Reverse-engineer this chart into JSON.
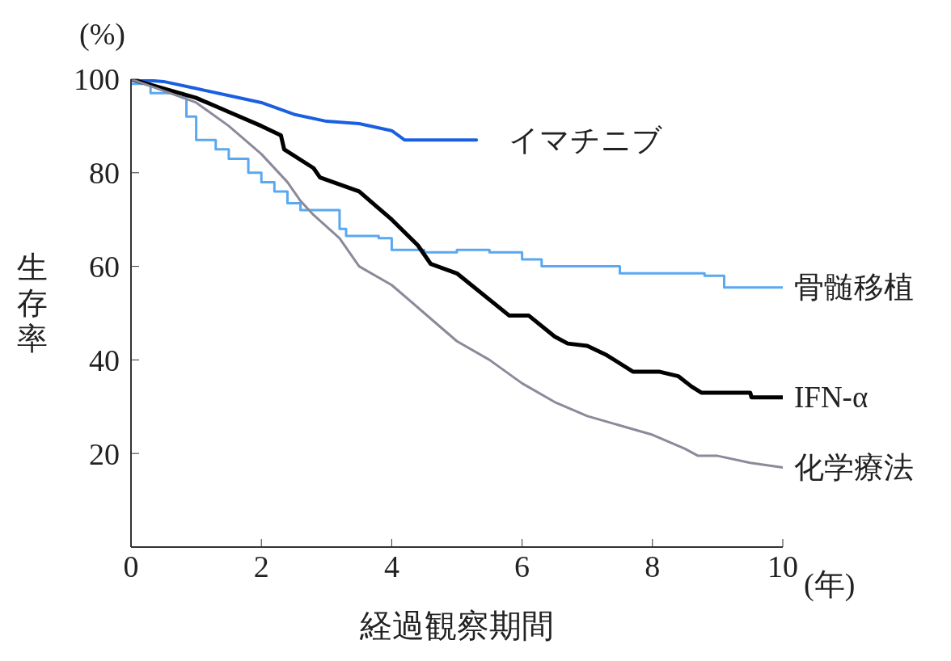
{
  "chart_data": {
    "type": "step",
    "ylabel": "生存率",
    "xlabel": "経過観察期間",
    "annotations": [
      "(%)",
      "(年)"
    ],
    "xlim": [
      0,
      10
    ],
    "xticks": [
      0,
      2,
      4,
      6,
      8,
      10
    ],
    "ylim": [
      0,
      100
    ],
    "yticks": [
      20,
      40,
      60,
      80,
      100
    ],
    "grid": false,
    "legend": false,
    "marker": "none",
    "line_style": "solid",
    "series": [
      {
        "name": "イマチニブ",
        "color": "#1a5fe0",
        "type": "line",
        "x": [
          0,
          0.5,
          1,
          1.5,
          2,
          2.5,
          3,
          3.5,
          4,
          4.2,
          5.3
        ],
        "values": [
          100,
          99.5,
          98,
          96.5,
          95,
          92.5,
          91,
          90.5,
          89,
          87,
          87
        ]
      },
      {
        "name": "骨髄移植",
        "color": "#5aa8f0",
        "x": [
          0,
          0.3,
          0.8,
          0.85,
          1,
          1.3,
          1.5,
          1.8,
          2,
          2.2,
          2.4,
          2.6,
          3.2,
          3.3,
          3.8,
          4,
          4.5,
          5,
          5.5,
          6,
          6.3,
          7.3,
          7.5,
          8.6,
          8.8,
          9,
          9.1,
          10
        ],
        "values": [
          99,
          97,
          96,
          92,
          87,
          85,
          83,
          80,
          78,
          76,
          73.5,
          72,
          68,
          66.5,
          66,
          63.5,
          63,
          63.5,
          63,
          61.5,
          60,
          60,
          58.5,
          58.5,
          58,
          58,
          55.5,
          55.5
        ]
      },
      {
        "name": "IFN-α",
        "color": "#000000",
        "type": "line",
        "x": [
          0,
          1,
          1.5,
          2,
          2.3,
          2.35,
          2.8,
          2.9,
          3.5,
          4,
          4.4,
          4.6,
          5,
          5.8,
          6.1,
          6.5,
          6.7,
          7,
          7.3,
          7.7,
          8.1,
          8.4,
          8.6,
          8.75,
          9.5,
          9.52,
          10
        ],
        "values": [
          100,
          96,
          93,
          90,
          88,
          85,
          81,
          79,
          76,
          70,
          64.5,
          60.5,
          58.5,
          49.5,
          49.5,
          45,
          43.5,
          43,
          41,
          37.5,
          37.5,
          36.5,
          34.3,
          33,
          33,
          32,
          32
        ]
      },
      {
        "name": "化学療法",
        "color": "#8a8a9a",
        "type": "line",
        "x": [
          0,
          1,
          1.5,
          2,
          2.4,
          2.6,
          2.8,
          3.2,
          3.5,
          4,
          4.5,
          5,
          5.5,
          6,
          6.5,
          7,
          7.5,
          8,
          8.5,
          8.7,
          9,
          9.5,
          10
        ],
        "values": [
          100,
          95,
          90,
          84,
          78,
          74,
          71,
          66,
          60,
          56,
          50,
          44,
          40,
          35,
          31,
          28,
          26,
          24,
          21,
          19.5,
          19.5,
          18,
          17
        ]
      }
    ]
  }
}
